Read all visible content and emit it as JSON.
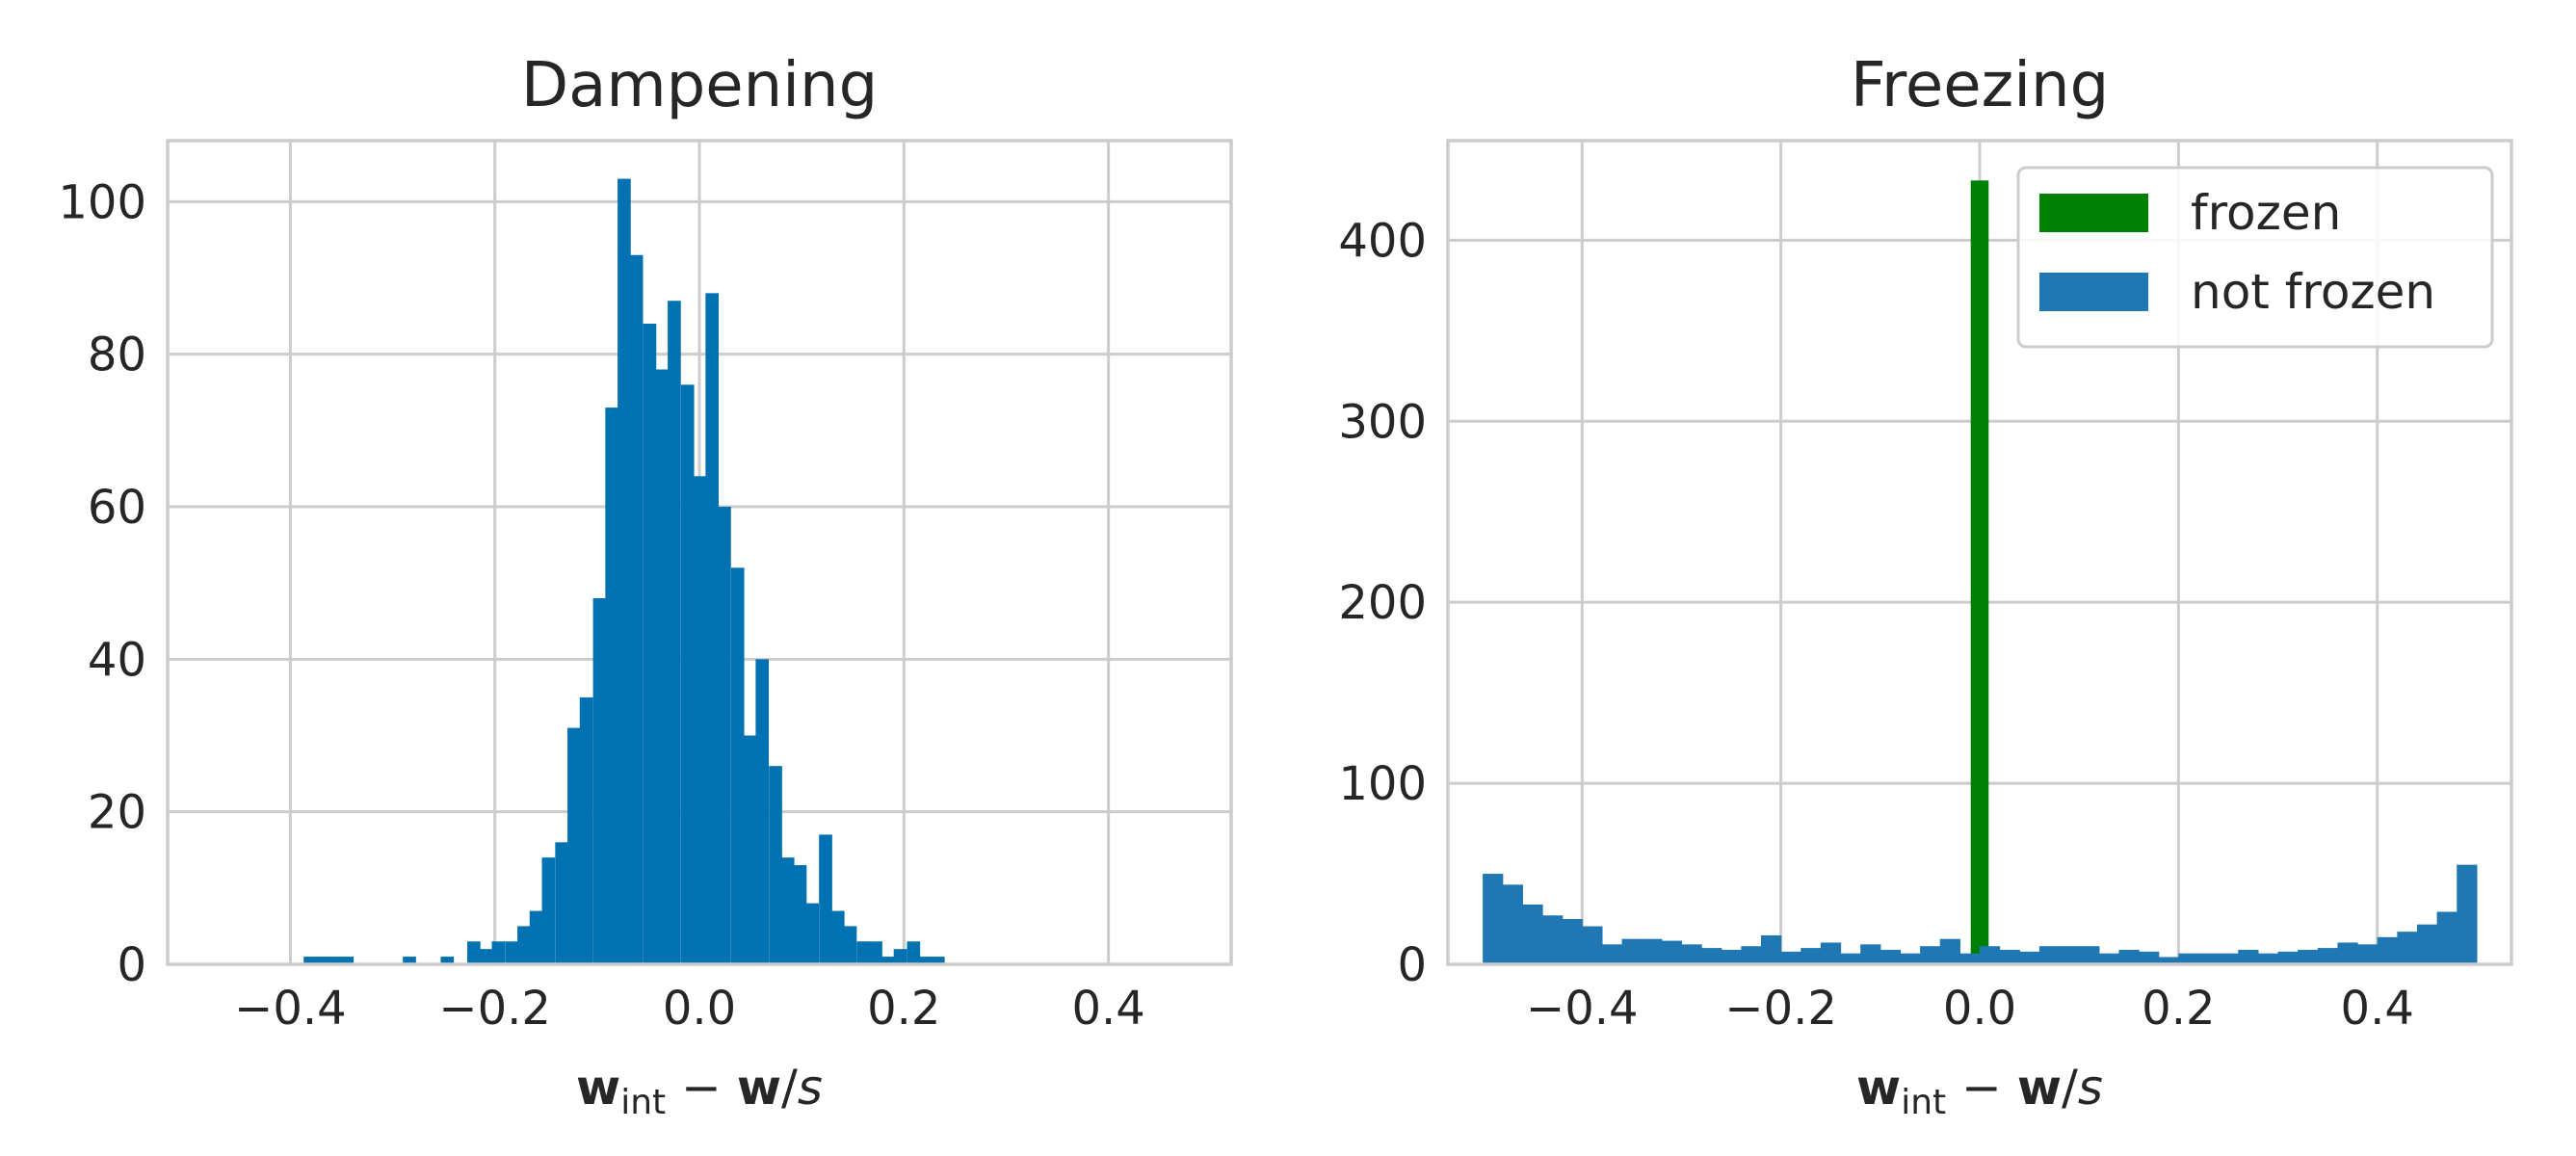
{
  "chart_data": [
    {
      "type": "bar",
      "title": "Dampening",
      "xlabel": {
        "main": "w",
        "sub": "int",
        "rest": " − ",
        "bold2": "w",
        "tail": "/",
        "italic": "s"
      },
      "xlim": [
        -0.52,
        0.52
      ],
      "ylim": [
        0,
        108
      ],
      "xticks": [
        -0.4,
        -0.2,
        0.0,
        0.2,
        0.4
      ],
      "xtick_labels": [
        "−0.4",
        "−0.2",
        "0.0",
        "0.2",
        "0.4"
      ],
      "yticks": [
        0,
        20,
        40,
        60,
        80,
        100
      ],
      "ytick_labels": [
        "0",
        "20",
        "40",
        "60",
        "80",
        "100"
      ],
      "grid": true,
      "color": "#0072B2",
      "bin_width": 0.0123,
      "bin_starts": [
        -0.387,
        -0.375,
        -0.363,
        -0.351,
        -0.29,
        -0.253,
        -0.227,
        -0.215,
        -0.203,
        -0.19,
        -0.178,
        -0.166,
        -0.154,
        -0.141,
        -0.129,
        -0.117,
        -0.104,
        -0.092,
        -0.08,
        -0.068,
        -0.055,
        -0.043,
        -0.031,
        -0.018,
        -0.006,
        0.006,
        0.018,
        0.031,
        0.043,
        0.055,
        0.068,
        0.08,
        0.092,
        0.104,
        0.117,
        0.129,
        0.141,
        0.154,
        0.166,
        0.178,
        0.19,
        0.203,
        0.215,
        0.227,
        0.24,
        0.252,
        0.277,
        0.289
      ],
      "counts": [
        1,
        1,
        1,
        1,
        1,
        1,
        3,
        2,
        3,
        3,
        5,
        7,
        14,
        16,
        31,
        35,
        48,
        73,
        103,
        93,
        84,
        78,
        87,
        76,
        64,
        88,
        60,
        52,
        30,
        40,
        26,
        14,
        13,
        8,
        17,
        7,
        5,
        3,
        3,
        1,
        2,
        3,
        1,
        1,
        0,
        0,
        0,
        0
      ]
    },
    {
      "type": "bar",
      "title": "Freezing",
      "xlabel": {
        "main": "w",
        "sub": "int",
        "rest": " − ",
        "bold2": "w",
        "tail": "/",
        "italic": "s"
      },
      "xlim": [
        -0.535,
        0.535
      ],
      "ylim": [
        0,
        455
      ],
      "xticks": [
        -0.4,
        -0.2,
        0.0,
        0.2,
        0.4
      ],
      "xtick_labels": [
        "−0.4",
        "−0.2",
        "0.0",
        "0.2",
        "0.4"
      ],
      "yticks": [
        0,
        100,
        200,
        300,
        400
      ],
      "ytick_labels": [
        "0",
        "100",
        "200",
        "300",
        "400"
      ],
      "grid": true,
      "legend": {
        "placement": "top-right",
        "entries": [
          "frozen",
          "not frozen"
        ]
      },
      "series": [
        {
          "name": "frozen",
          "color": "#008000",
          "bins": [
            {
              "x0": -0.009,
              "x1": 0.009,
              "count": 433
            }
          ]
        },
        {
          "name": "not frozen",
          "color": "#1f77b4",
          "range": [
            -0.5,
            0.5
          ],
          "counts": [
            50,
            44,
            33,
            27,
            25,
            21,
            11,
            14,
            14,
            13,
            11,
            9,
            8,
            10,
            16,
            7,
            9,
            12,
            6,
            11,
            8,
            6,
            10,
            14,
            6,
            10,
            8,
            7,
            10,
            10,
            10,
            6,
            8,
            7,
            4,
            6,
            6,
            6,
            8,
            6,
            7,
            8,
            9,
            12,
            11,
            15,
            18,
            22,
            29,
            55
          ]
        }
      ]
    }
  ]
}
